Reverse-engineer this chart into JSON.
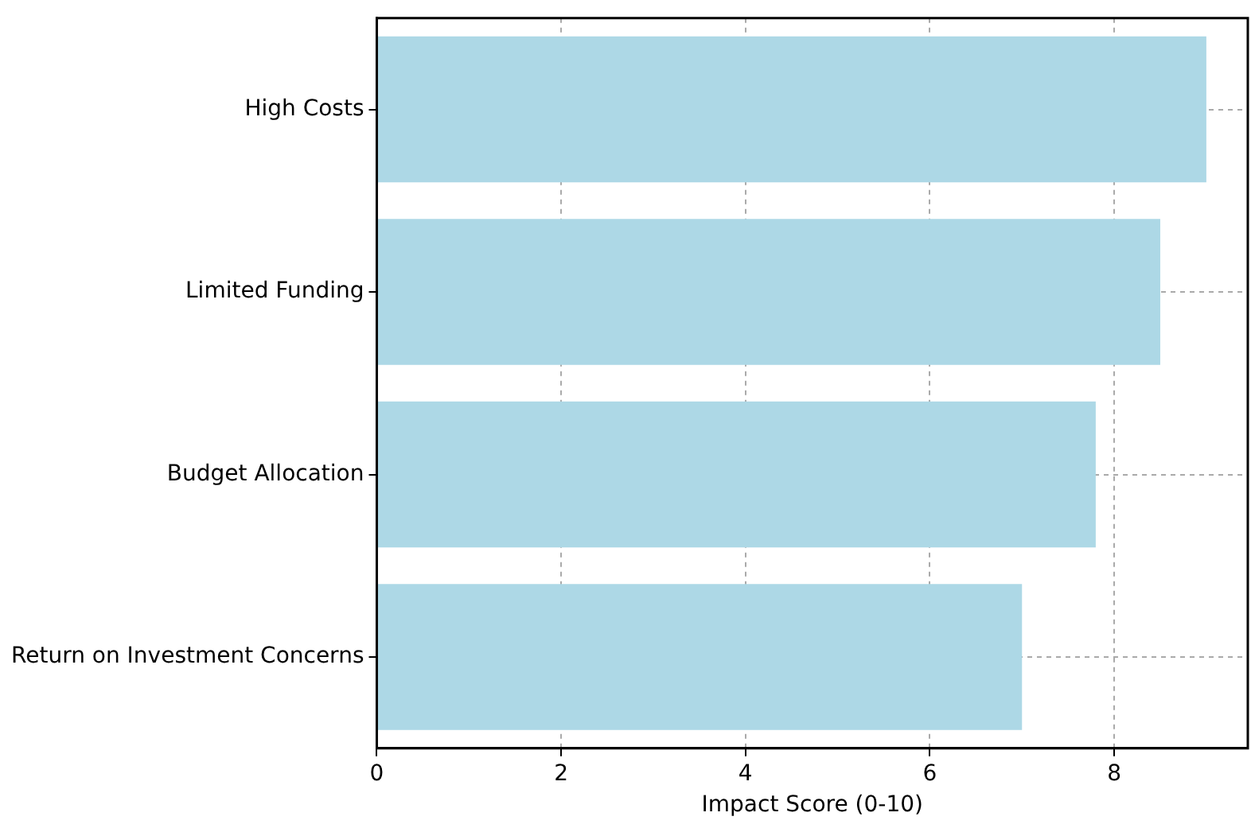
{
  "chart_data": {
    "type": "bar",
    "orientation": "horizontal",
    "xlabel": "Impact Score (0-10)",
    "categories": [
      "High Costs",
      "Limited Funding",
      "Budget Allocation",
      "Return on Investment Concerns"
    ],
    "values": [
      9,
      8.5,
      7.8,
      7
    ],
    "color": "#add8e6",
    "xlim": [
      0,
      9.45
    ],
    "xticks": [
      0,
      2,
      4,
      6,
      8
    ],
    "grid": true
  }
}
